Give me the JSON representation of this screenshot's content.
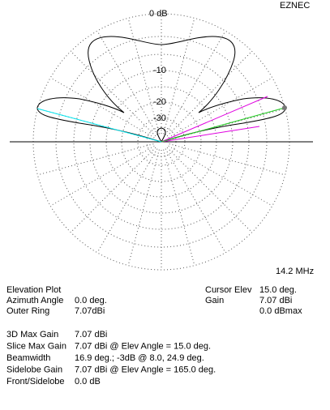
{
  "header": {
    "app": "EZNEC"
  },
  "plot": {
    "ring_labels": [
      "0 dB",
      "-10",
      "-20",
      "-30"
    ],
    "frequency": "14.2 MHz"
  },
  "info": {
    "left": [
      [
        "Elevation Plot",
        ""
      ],
      [
        "Azimuth Angle",
        "0.0 deg."
      ],
      [
        "Outer Ring",
        "7.07dBi"
      ]
    ],
    "right": [
      [
        "Cursor Elev",
        "15.0 deg."
      ],
      [
        "Gain",
        "7.07 dBi"
      ],
      [
        "",
        "0.0 dBmax"
      ]
    ],
    "details": [
      [
        "3D Max Gain",
        "7.07 dBi"
      ],
      [
        "Slice Max Gain",
        "7.07 dBi @ Elev Angle = 15.0 deg."
      ],
      [
        "Beamwidth",
        "16.9 deg.; -3dB @ 8.0, 24.9 deg."
      ],
      [
        "Sidelobe Gain",
        "7.07 dBi @ Elev Angle = 165.0 deg."
      ],
      [
        "Front/Sidelobe",
        "0.0 dB"
      ]
    ]
  }
}
